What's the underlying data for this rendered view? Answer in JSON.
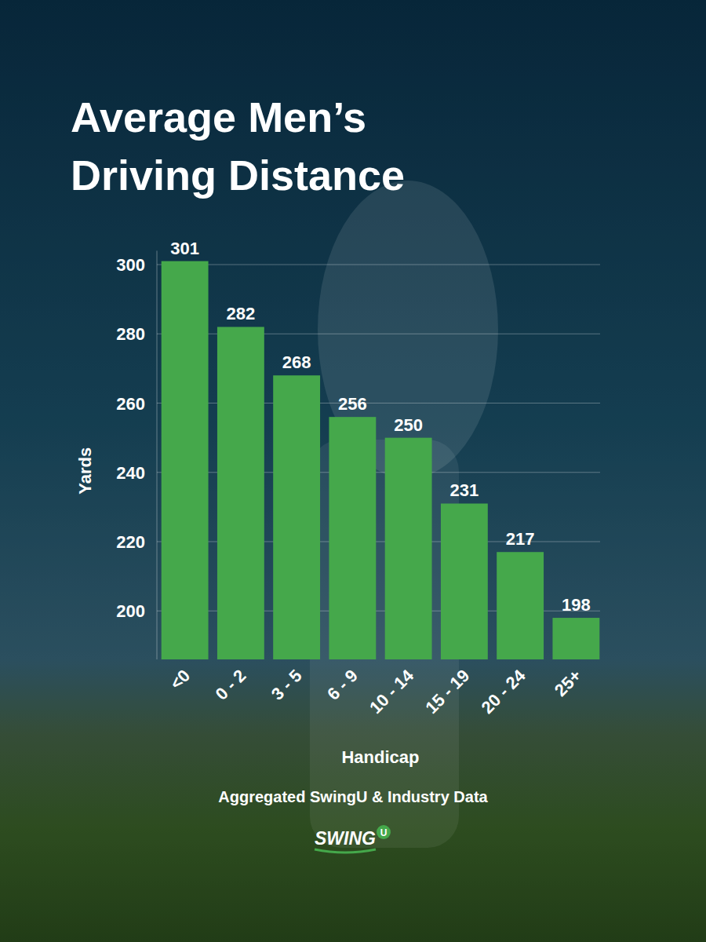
{
  "chart_data": {
    "type": "bar",
    "title": "Average Men’s Driving Distance",
    "x_label": "Handicap",
    "y_label": "Yards",
    "categories": [
      "<0",
      "0 - 2",
      "3 - 5",
      "6 - 9",
      "10 - 14",
      "15 - 19",
      "20 - 24",
      "25+"
    ],
    "values": [
      301,
      282,
      268,
      256,
      250,
      231,
      217,
      198
    ],
    "color": "#45a84b",
    "ylim": [
      186,
      304
    ],
    "yticks": [
      200,
      220,
      240,
      260,
      280,
      300
    ],
    "grid": true,
    "data_labels": true,
    "annotations": [
      "Aggregated SwingU & Industry Data",
      "SWING",
      "U"
    ]
  }
}
